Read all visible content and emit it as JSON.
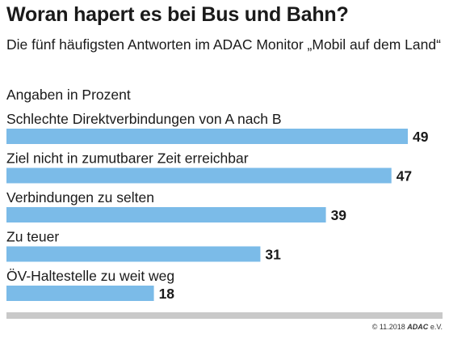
{
  "chart_data": {
    "type": "bar",
    "orientation": "horizontal",
    "title": "Woran hapert es bei Bus und Bahn?",
    "subtitle": "Die fünf häufigsten Antworten im ADAC Monitor „Mobil auf dem Land“",
    "unit_label": "Angaben in Prozent",
    "categories": [
      "Schlechte Direktverbindungen von A nach B",
      "Ziel nicht in zumutbarer Zeit erreichbar",
      "Verbindungen zu selten",
      "Zu teuer",
      "ÖV-Haltestelle zu weit weg"
    ],
    "values": [
      49,
      47,
      39,
      31,
      18
    ],
    "bar_color": "#7bbbe8",
    "baseline_color": "#c9c9c9",
    "grid": false
  },
  "footer": {
    "date": "© 11.2018",
    "brand": "ADAC",
    "brand_suffix": "e.V."
  }
}
